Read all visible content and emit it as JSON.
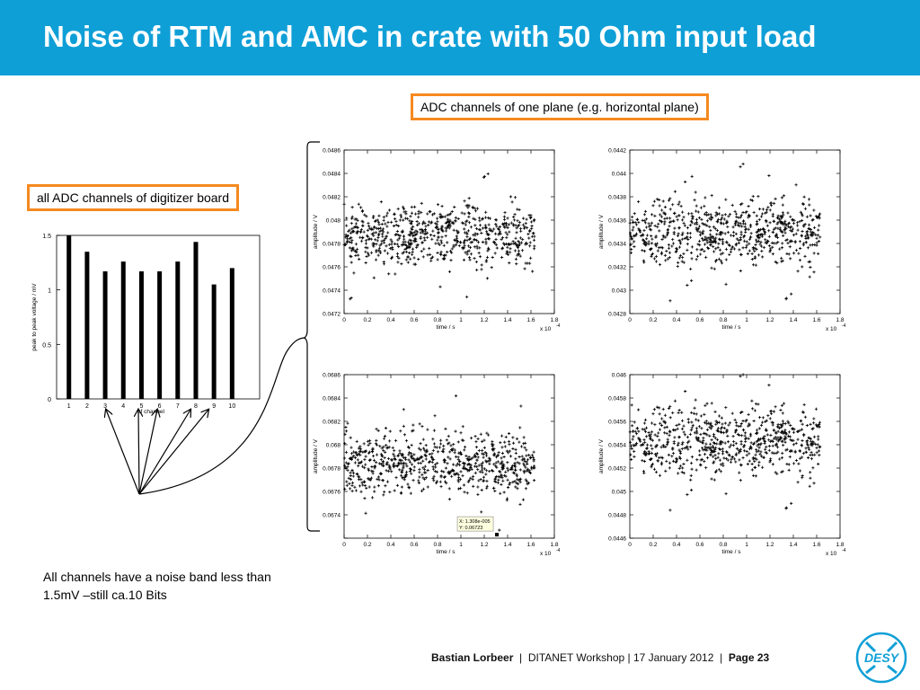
{
  "title": "Noise of RTM and AMC in crate with 50 Ohm input load",
  "callouts": {
    "adc_plane": "ADC channels of one plane (e.g. horizontal plane)",
    "digitizer": "all ADC channels of digitizer board"
  },
  "note": {
    "line1": "All channels have a noise band less than",
    "line2": "1.5mV –still ca.10 Bits"
  },
  "footer": {
    "author": "Bastian Lorbeer",
    "sep": "|",
    "event": "DITANET Workshop | 17 January 2012",
    "page": "Page 23"
  },
  "logo": {
    "text": "DESY",
    "color": "#0f9fd7"
  },
  "colors": {
    "header": "#0f9fd7",
    "callout_border": "#f6891f"
  },
  "chart_data": [
    {
      "type": "bar",
      "categories": [
        "1",
        "2",
        "3",
        "4",
        "5",
        "6",
        "7",
        "8",
        "9",
        "10"
      ],
      "values": [
        1.5,
        1.35,
        1.17,
        1.26,
        1.17,
        1.17,
        1.26,
        1.44,
        1.05,
        1.2
      ],
      "ylabel": "peak to peak voltage / mV",
      "xlabel": "of channel",
      "ylim": [
        0,
        1.5
      ],
      "yticks": [
        "0",
        "0.5",
        "1",
        "1.5"
      ]
    },
    {
      "type": "scatter",
      "ylabel": "amplitude / V",
      "xlabel": "time / s",
      "xmult": "x 10",
      "xexp": "-4",
      "xticks": [
        "0",
        "0.2",
        "0.4",
        "0.6",
        "0.8",
        "1",
        "1.2",
        "1.4",
        "1.6",
        "1.8"
      ],
      "xlim": [
        0,
        1.8
      ],
      "ylim": [
        0.0472,
        0.0486
      ],
      "yticks": [
        "0.0472",
        "0.0474",
        "0.0476",
        "0.0478",
        "0.048",
        "0.0482",
        "0.0484",
        "0.0486"
      ],
      "band": [
        0.04766,
        0.04808
      ]
    },
    {
      "type": "scatter",
      "ylabel": "amplitude / V",
      "xlabel": "time / s",
      "xmult": "x 10",
      "xexp": "-4",
      "xticks": [
        "0",
        "0.2",
        "0.4",
        "0.6",
        "0.8",
        "1",
        "1.2",
        "1.4",
        "1.6",
        "1.8"
      ],
      "xlim": [
        0,
        1.8
      ],
      "ylim": [
        0.0428,
        0.0442
      ],
      "yticks": [
        "0.0428",
        "0.043",
        "0.0432",
        "0.0434",
        "0.0436",
        "0.0438",
        "0.044",
        "0.0442"
      ],
      "band": [
        0.04326,
        0.04372
      ]
    },
    {
      "type": "scatter",
      "ylabel": "amplitude / V",
      "xlabel": "time / s",
      "xmult": "x 10",
      "xexp": "-4",
      "xticks": [
        "0",
        "0.2",
        "0.4",
        "0.6",
        "0.8",
        "1",
        "1.2",
        "1.4",
        "1.6",
        "1.8"
      ],
      "xlim": [
        0,
        1.8
      ],
      "ylim": [
        0.0672,
        0.0686
      ],
      "yticks": [
        "",
        "0.0674",
        "0.0676",
        "0.0678",
        "0.068",
        "0.0682",
        "0.0684",
        "0.0686"
      ],
      "band": [
        0.06762,
        0.06806
      ],
      "datatip": {
        "x": "X: 1.308e-005",
        "y": "Y: 0.06723"
      }
    },
    {
      "type": "scatter",
      "ylabel": "amplitude / V",
      "xlabel": "time / s",
      "xmult": "x 10",
      "xexp": "-4",
      "xticks": [
        "0",
        "0.2",
        "0.4",
        "0.6",
        "0.8",
        "1",
        "1.2",
        "1.4",
        "1.6",
        "1.8"
      ],
      "xlim": [
        0,
        1.8
      ],
      "ylim": [
        0.0446,
        0.046
      ],
      "yticks": [
        "0.0446",
        "0.0448",
        "0.045",
        "0.0452",
        "0.0454",
        "0.0456",
        "0.0458",
        "0.046"
      ],
      "band": [
        0.04518,
        0.04566
      ]
    }
  ]
}
